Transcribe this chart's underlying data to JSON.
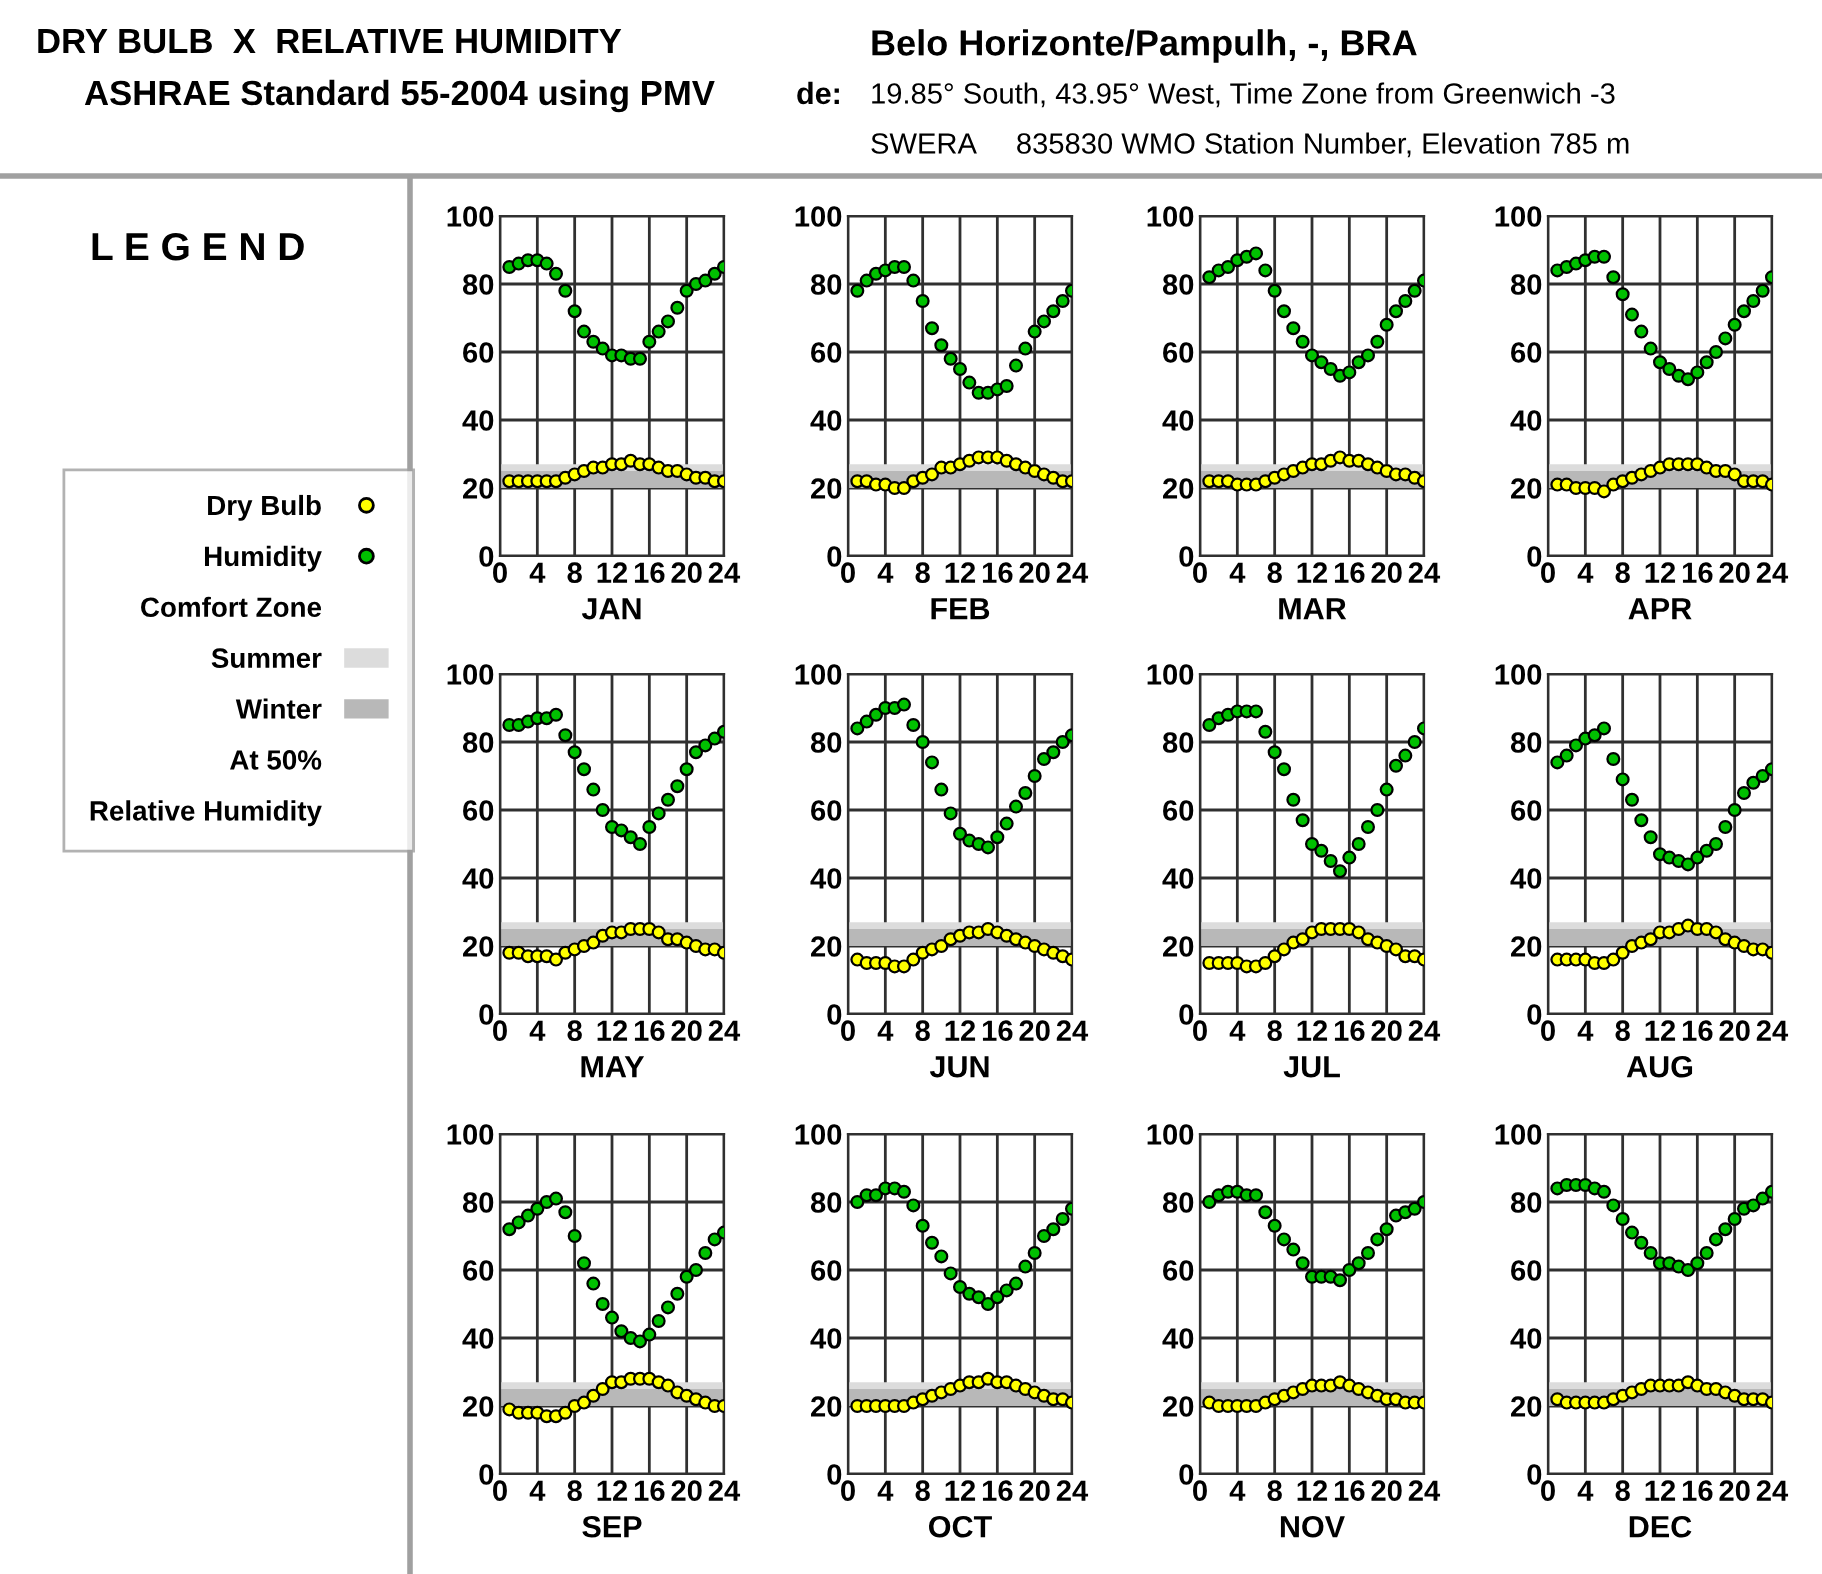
{
  "chart_data": [
    {
      "type": "other",
      "title": "DRY BULB  X  RELATIVE HUMIDITY",
      "subtitle": "ASHRAE Standard 55-2004 using PMV",
      "annotations": [
        "de:",
        "Belo Horizonte/Pampulh, -, BRA",
        "19.85° South, 43.95° West, Time Zone from Greenwich -3",
        "SWERA     835830 WMO Station Number, Elevation 785 m",
        "L E G E N D",
        "Comfort Zone",
        "At 50%",
        "Relative Humidity"
      ]
    },
    {
      "type": "scatter",
      "xlabel": "JAN",
      "xlim": [
        0,
        24
      ],
      "xticks": [
        0,
        4,
        8,
        12,
        16,
        20,
        24
      ],
      "ylim": [
        0,
        100
      ],
      "yticks": [
        0,
        20,
        40,
        60,
        80,
        100
      ],
      "grid": true,
      "marker": "circle",
      "legend": "left",
      "bands": [
        {
          "axis": "y",
          "from": 20,
          "to": 27,
          "label": "Summer",
          "color": "#dcdcdc"
        },
        {
          "axis": "y",
          "from": 20,
          "to": 25,
          "label": "Winter",
          "color": "#b8b8b8"
        }
      ],
      "series": [
        {
          "name": "Dry Bulb",
          "color": "#ffff00",
          "x": [
            1,
            2,
            3,
            4,
            5,
            6,
            7,
            8,
            9,
            10,
            11,
            12,
            13,
            14,
            15,
            16,
            17,
            18,
            19,
            20,
            21,
            22,
            23,
            24
          ],
          "values": [
            22,
            22,
            22,
            22,
            22,
            22,
            23,
            24,
            25,
            26,
            26,
            27,
            27,
            28,
            27,
            27,
            26,
            25,
            25,
            24,
            23,
            23,
            22,
            22
          ]
        },
        {
          "name": "Humidity",
          "color": "#00c000",
          "x": [
            1,
            2,
            3,
            4,
            5,
            6,
            7,
            8,
            9,
            10,
            11,
            12,
            13,
            14,
            15,
            16,
            17,
            18,
            19,
            20,
            21,
            22,
            23,
            24
          ],
          "values": [
            85,
            86,
            87,
            87,
            86,
            83,
            78,
            72,
            66,
            63,
            61,
            59,
            59,
            58,
            58,
            63,
            66,
            69,
            73,
            78,
            80,
            81,
            83,
            85
          ]
        }
      ]
    },
    {
      "type": "scatter",
      "xlabel": "FEB",
      "xlim": [
        0,
        24
      ],
      "xticks": [
        0,
        4,
        8,
        12,
        16,
        20,
        24
      ],
      "ylim": [
        0,
        100
      ],
      "yticks": [
        0,
        20,
        40,
        60,
        80,
        100
      ],
      "grid": true,
      "marker": "circle",
      "bands": [
        {
          "axis": "y",
          "from": 20,
          "to": 27,
          "color": "#dcdcdc"
        },
        {
          "axis": "y",
          "from": 20,
          "to": 25,
          "color": "#b8b8b8"
        }
      ],
      "series": [
        {
          "color": "#ffff00",
          "x": [
            1,
            2,
            3,
            4,
            5,
            6,
            7,
            8,
            9,
            10,
            11,
            12,
            13,
            14,
            15,
            16,
            17,
            18,
            19,
            20,
            21,
            22,
            23,
            24
          ],
          "values": [
            22,
            22,
            21,
            21,
            20,
            20,
            22,
            23,
            24,
            26,
            26,
            27,
            28,
            29,
            29,
            29,
            28,
            27,
            26,
            25,
            24,
            23,
            22,
            22
          ]
        },
        {
          "color": "#00c000",
          "x": [
            1,
            2,
            3,
            4,
            5,
            6,
            7,
            8,
            9,
            10,
            11,
            12,
            13,
            14,
            15,
            16,
            17,
            18,
            19,
            20,
            21,
            22,
            23,
            24
          ],
          "values": [
            78,
            81,
            83,
            84,
            85,
            85,
            81,
            75,
            67,
            62,
            58,
            55,
            51,
            48,
            48,
            49,
            50,
            56,
            61,
            66,
            69,
            72,
            75,
            78
          ]
        }
      ]
    },
    {
      "type": "scatter",
      "xlabel": "MAR",
      "xlim": [
        0,
        24
      ],
      "xticks": [
        0,
        4,
        8,
        12,
        16,
        20,
        24
      ],
      "ylim": [
        0,
        100
      ],
      "yticks": [
        0,
        20,
        40,
        60,
        80,
        100
      ],
      "grid": true,
      "marker": "circle",
      "bands": [
        {
          "axis": "y",
          "from": 20,
          "to": 27,
          "color": "#dcdcdc"
        },
        {
          "axis": "y",
          "from": 20,
          "to": 25,
          "color": "#b8b8b8"
        }
      ],
      "series": [
        {
          "color": "#ffff00",
          "x": [
            1,
            2,
            3,
            4,
            5,
            6,
            7,
            8,
            9,
            10,
            11,
            12,
            13,
            14,
            15,
            16,
            17,
            18,
            19,
            20,
            21,
            22,
            23,
            24
          ],
          "values": [
            22,
            22,
            22,
            21,
            21,
            21,
            22,
            23,
            24,
            25,
            26,
            27,
            27,
            28,
            29,
            28,
            28,
            27,
            26,
            25,
            24,
            24,
            23,
            22
          ]
        },
        {
          "color": "#00c000",
          "x": [
            1,
            2,
            3,
            4,
            5,
            6,
            7,
            8,
            9,
            10,
            11,
            12,
            13,
            14,
            15,
            16,
            17,
            18,
            19,
            20,
            21,
            22,
            23,
            24
          ],
          "values": [
            82,
            84,
            85,
            87,
            88,
            89,
            84,
            78,
            72,
            67,
            63,
            59,
            57,
            55,
            53,
            54,
            57,
            59,
            63,
            68,
            72,
            75,
            78,
            81
          ]
        }
      ]
    },
    {
      "type": "scatter",
      "xlabel": "APR",
      "xlim": [
        0,
        24
      ],
      "xticks": [
        0,
        4,
        8,
        12,
        16,
        20,
        24
      ],
      "ylim": [
        0,
        100
      ],
      "yticks": [
        0,
        20,
        40,
        60,
        80,
        100
      ],
      "grid": true,
      "marker": "circle",
      "bands": [
        {
          "axis": "y",
          "from": 20,
          "to": 27,
          "color": "#dcdcdc"
        },
        {
          "axis": "y",
          "from": 20,
          "to": 25,
          "color": "#b8b8b8"
        }
      ],
      "series": [
        {
          "color": "#ffff00",
          "x": [
            1,
            2,
            3,
            4,
            5,
            6,
            7,
            8,
            9,
            10,
            11,
            12,
            13,
            14,
            15,
            16,
            17,
            18,
            19,
            20,
            21,
            22,
            23,
            24
          ],
          "values": [
            21,
            21,
            20,
            20,
            20,
            19,
            21,
            22,
            23,
            24,
            25,
            26,
            27,
            27,
            27,
            27,
            26,
            25,
            25,
            24,
            22,
            22,
            22,
            21
          ]
        },
        {
          "color": "#00c000",
          "x": [
            1,
            2,
            3,
            4,
            5,
            6,
            7,
            8,
            9,
            10,
            11,
            12,
            13,
            14,
            15,
            16,
            17,
            18,
            19,
            20,
            21,
            22,
            23,
            24
          ],
          "values": [
            84,
            85,
            86,
            87,
            88,
            88,
            82,
            77,
            71,
            66,
            61,
            57,
            55,
            53,
            52,
            54,
            57,
            60,
            64,
            68,
            72,
            75,
            78,
            82
          ]
        }
      ]
    },
    {
      "type": "scatter",
      "xlabel": "MAY",
      "xlim": [
        0,
        24
      ],
      "xticks": [
        0,
        4,
        8,
        12,
        16,
        20,
        24
      ],
      "ylim": [
        0,
        100
      ],
      "yticks": [
        0,
        20,
        40,
        60,
        80,
        100
      ],
      "grid": true,
      "marker": "circle",
      "bands": [
        {
          "axis": "y",
          "from": 20,
          "to": 27,
          "color": "#dcdcdc"
        },
        {
          "axis": "y",
          "from": 20,
          "to": 25,
          "color": "#b8b8b8"
        }
      ],
      "series": [
        {
          "color": "#ffff00",
          "x": [
            1,
            2,
            3,
            4,
            5,
            6,
            7,
            8,
            9,
            10,
            11,
            12,
            13,
            14,
            15,
            16,
            17,
            18,
            19,
            20,
            21,
            22,
            23,
            24
          ],
          "values": [
            18,
            18,
            17,
            17,
            17,
            16,
            18,
            19,
            20,
            21,
            23,
            24,
            24,
            25,
            25,
            25,
            24,
            22,
            22,
            21,
            20,
            19,
            19,
            18
          ]
        },
        {
          "color": "#00c000",
          "x": [
            1,
            2,
            3,
            4,
            5,
            6,
            7,
            8,
            9,
            10,
            11,
            12,
            13,
            14,
            15,
            16,
            17,
            18,
            19,
            20,
            21,
            22,
            23,
            24
          ],
          "values": [
            85,
            85,
            86,
            87,
            87,
            88,
            82,
            77,
            72,
            66,
            60,
            55,
            54,
            52,
            50,
            55,
            59,
            63,
            67,
            72,
            77,
            79,
            81,
            83
          ]
        }
      ]
    },
    {
      "type": "scatter",
      "xlabel": "JUN",
      "xlim": [
        0,
        24
      ],
      "xticks": [
        0,
        4,
        8,
        12,
        16,
        20,
        24
      ],
      "ylim": [
        0,
        100
      ],
      "yticks": [
        0,
        20,
        40,
        60,
        80,
        100
      ],
      "grid": true,
      "marker": "circle",
      "bands": [
        {
          "axis": "y",
          "from": 20,
          "to": 27,
          "color": "#dcdcdc"
        },
        {
          "axis": "y",
          "from": 20,
          "to": 25,
          "color": "#b8b8b8"
        }
      ],
      "series": [
        {
          "color": "#ffff00",
          "x": [
            1,
            2,
            3,
            4,
            5,
            6,
            7,
            8,
            9,
            10,
            11,
            12,
            13,
            14,
            15,
            16,
            17,
            18,
            19,
            20,
            21,
            22,
            23,
            24
          ],
          "values": [
            16,
            15,
            15,
            15,
            14,
            14,
            16,
            18,
            19,
            20,
            22,
            23,
            24,
            24,
            25,
            24,
            23,
            22,
            21,
            20,
            19,
            18,
            17,
            16
          ]
        },
        {
          "color": "#00c000",
          "x": [
            1,
            2,
            3,
            4,
            5,
            6,
            7,
            8,
            9,
            10,
            11,
            12,
            13,
            14,
            15,
            16,
            17,
            18,
            19,
            20,
            21,
            22,
            23,
            24
          ],
          "values": [
            84,
            86,
            88,
            90,
            90,
            91,
            85,
            80,
            74,
            66,
            59,
            53,
            51,
            50,
            49,
            52,
            56,
            61,
            65,
            70,
            75,
            77,
            80,
            82
          ]
        }
      ]
    },
    {
      "type": "scatter",
      "xlabel": "JUL",
      "xlim": [
        0,
        24
      ],
      "xticks": [
        0,
        4,
        8,
        12,
        16,
        20,
        24
      ],
      "ylim": [
        0,
        100
      ],
      "yticks": [
        0,
        20,
        40,
        60,
        80,
        100
      ],
      "grid": true,
      "marker": "circle",
      "bands": [
        {
          "axis": "y",
          "from": 20,
          "to": 27,
          "color": "#dcdcdc"
        },
        {
          "axis": "y",
          "from": 20,
          "to": 25,
          "color": "#b8b8b8"
        }
      ],
      "series": [
        {
          "color": "#ffff00",
          "x": [
            1,
            2,
            3,
            4,
            5,
            6,
            7,
            8,
            9,
            10,
            11,
            12,
            13,
            14,
            15,
            16,
            17,
            18,
            19,
            20,
            21,
            22,
            23,
            24
          ],
          "values": [
            15,
            15,
            15,
            15,
            14,
            14,
            15,
            17,
            19,
            21,
            22,
            24,
            25,
            25,
            25,
            25,
            24,
            22,
            21,
            20,
            19,
            17,
            17,
            16
          ]
        },
        {
          "color": "#00c000",
          "x": [
            1,
            2,
            3,
            4,
            5,
            6,
            7,
            8,
            9,
            10,
            11,
            12,
            13,
            14,
            15,
            16,
            17,
            18,
            19,
            20,
            21,
            22,
            23,
            24
          ],
          "values": [
            85,
            87,
            88,
            89,
            89,
            89,
            83,
            77,
            72,
            63,
            57,
            50,
            48,
            45,
            42,
            46,
            50,
            55,
            60,
            66,
            73,
            76,
            80,
            84
          ]
        }
      ]
    },
    {
      "type": "scatter",
      "xlabel": "AUG",
      "xlim": [
        0,
        24
      ],
      "xticks": [
        0,
        4,
        8,
        12,
        16,
        20,
        24
      ],
      "ylim": [
        0,
        100
      ],
      "yticks": [
        0,
        20,
        40,
        60,
        80,
        100
      ],
      "grid": true,
      "marker": "circle",
      "bands": [
        {
          "axis": "y",
          "from": 20,
          "to": 27,
          "color": "#dcdcdc"
        },
        {
          "axis": "y",
          "from": 20,
          "to": 25,
          "color": "#b8b8b8"
        }
      ],
      "series": [
        {
          "color": "#ffff00",
          "x": [
            1,
            2,
            3,
            4,
            5,
            6,
            7,
            8,
            9,
            10,
            11,
            12,
            13,
            14,
            15,
            16,
            17,
            18,
            19,
            20,
            21,
            22,
            23,
            24
          ],
          "values": [
            16,
            16,
            16,
            16,
            15,
            15,
            16,
            18,
            20,
            21,
            22,
            24,
            24,
            25,
            26,
            25,
            25,
            24,
            22,
            21,
            20,
            19,
            19,
            18
          ]
        },
        {
          "color": "#00c000",
          "x": [
            1,
            2,
            3,
            4,
            5,
            6,
            7,
            8,
            9,
            10,
            11,
            12,
            13,
            14,
            15,
            16,
            17,
            18,
            19,
            20,
            21,
            22,
            23,
            24
          ],
          "values": [
            74,
            76,
            79,
            81,
            82,
            84,
            75,
            69,
            63,
            57,
            52,
            47,
            46,
            45,
            44,
            46,
            48,
            50,
            55,
            60,
            65,
            68,
            70,
            72
          ]
        }
      ]
    },
    {
      "type": "scatter",
      "xlabel": "SEP",
      "xlim": [
        0,
        24
      ],
      "xticks": [
        0,
        4,
        8,
        12,
        16,
        20,
        24
      ],
      "ylim": [
        0,
        100
      ],
      "yticks": [
        0,
        20,
        40,
        60,
        80,
        100
      ],
      "grid": true,
      "marker": "circle",
      "bands": [
        {
          "axis": "y",
          "from": 20,
          "to": 27,
          "color": "#dcdcdc"
        },
        {
          "axis": "y",
          "from": 20,
          "to": 25,
          "color": "#b8b8b8"
        }
      ],
      "series": [
        {
          "color": "#ffff00",
          "x": [
            1,
            2,
            3,
            4,
            5,
            6,
            7,
            8,
            9,
            10,
            11,
            12,
            13,
            14,
            15,
            16,
            17,
            18,
            19,
            20,
            21,
            22,
            23,
            24
          ],
          "values": [
            19,
            18,
            18,
            18,
            17,
            17,
            18,
            20,
            21,
            23,
            25,
            27,
            27,
            28,
            28,
            28,
            27,
            26,
            24,
            23,
            22,
            21,
            20,
            20
          ]
        },
        {
          "color": "#00c000",
          "x": [
            1,
            2,
            3,
            4,
            5,
            6,
            7,
            8,
            9,
            10,
            11,
            12,
            13,
            14,
            15,
            16,
            17,
            18,
            19,
            20,
            21,
            22,
            23,
            24
          ],
          "values": [
            72,
            74,
            76,
            78,
            80,
            81,
            77,
            70,
            62,
            56,
            50,
            46,
            42,
            40,
            39,
            41,
            45,
            49,
            53,
            58,
            60,
            65,
            69,
            71
          ]
        }
      ]
    },
    {
      "type": "scatter",
      "xlabel": "OCT",
      "xlim": [
        0,
        24
      ],
      "xticks": [
        0,
        4,
        8,
        12,
        16,
        20,
        24
      ],
      "ylim": [
        0,
        100
      ],
      "yticks": [
        0,
        20,
        40,
        60,
        80,
        100
      ],
      "grid": true,
      "marker": "circle",
      "bands": [
        {
          "axis": "y",
          "from": 20,
          "to": 27,
          "color": "#dcdcdc"
        },
        {
          "axis": "y",
          "from": 20,
          "to": 25,
          "color": "#b8b8b8"
        }
      ],
      "series": [
        {
          "color": "#ffff00",
          "x": [
            1,
            2,
            3,
            4,
            5,
            6,
            7,
            8,
            9,
            10,
            11,
            12,
            13,
            14,
            15,
            16,
            17,
            18,
            19,
            20,
            21,
            22,
            23,
            24
          ],
          "values": [
            20,
            20,
            20,
            20,
            20,
            20,
            21,
            22,
            23,
            24,
            25,
            26,
            27,
            27,
            28,
            27,
            27,
            26,
            25,
            24,
            23,
            22,
            22,
            21
          ]
        },
        {
          "color": "#00c000",
          "x": [
            1,
            2,
            3,
            4,
            5,
            6,
            7,
            8,
            9,
            10,
            11,
            12,
            13,
            14,
            15,
            16,
            17,
            18,
            19,
            20,
            21,
            22,
            23,
            24
          ],
          "values": [
            80,
            82,
            82,
            84,
            84,
            83,
            79,
            73,
            68,
            64,
            59,
            55,
            53,
            52,
            50,
            52,
            54,
            56,
            61,
            65,
            70,
            72,
            75,
            78
          ]
        }
      ]
    },
    {
      "type": "scatter",
      "xlabel": "NOV",
      "xlim": [
        0,
        24
      ],
      "xticks": [
        0,
        4,
        8,
        12,
        16,
        20,
        24
      ],
      "ylim": [
        0,
        100
      ],
      "yticks": [
        0,
        20,
        40,
        60,
        80,
        100
      ],
      "grid": true,
      "marker": "circle",
      "bands": [
        {
          "axis": "y",
          "from": 20,
          "to": 27,
          "color": "#dcdcdc"
        },
        {
          "axis": "y",
          "from": 20,
          "to": 25,
          "color": "#b8b8b8"
        }
      ],
      "series": [
        {
          "color": "#ffff00",
          "x": [
            1,
            2,
            3,
            4,
            5,
            6,
            7,
            8,
            9,
            10,
            11,
            12,
            13,
            14,
            15,
            16,
            17,
            18,
            19,
            20,
            21,
            22,
            23,
            24
          ],
          "values": [
            21,
            20,
            20,
            20,
            20,
            20,
            21,
            22,
            23,
            24,
            25,
            26,
            26,
            26,
            27,
            26,
            25,
            24,
            23,
            22,
            22,
            21,
            21,
            21
          ]
        },
        {
          "color": "#00c000",
          "x": [
            1,
            2,
            3,
            4,
            5,
            6,
            7,
            8,
            9,
            10,
            11,
            12,
            13,
            14,
            15,
            16,
            17,
            18,
            19,
            20,
            21,
            22,
            23,
            24
          ],
          "values": [
            80,
            82,
            83,
            83,
            82,
            82,
            77,
            73,
            69,
            66,
            62,
            58,
            58,
            58,
            57,
            60,
            62,
            65,
            69,
            72,
            76,
            77,
            78,
            80
          ]
        }
      ]
    },
    {
      "type": "scatter",
      "xlabel": "DEC",
      "xlim": [
        0,
        24
      ],
      "xticks": [
        0,
        4,
        8,
        12,
        16,
        20,
        24
      ],
      "ylim": [
        0,
        100
      ],
      "yticks": [
        0,
        20,
        40,
        60,
        80,
        100
      ],
      "grid": true,
      "marker": "circle",
      "bands": [
        {
          "axis": "y",
          "from": 20,
          "to": 27,
          "color": "#dcdcdc"
        },
        {
          "axis": "y",
          "from": 20,
          "to": 25,
          "color": "#b8b8b8"
        }
      ],
      "series": [
        {
          "color": "#ffff00",
          "x": [
            1,
            2,
            3,
            4,
            5,
            6,
            7,
            8,
            9,
            10,
            11,
            12,
            13,
            14,
            15,
            16,
            17,
            18,
            19,
            20,
            21,
            22,
            23,
            24
          ],
          "values": [
            22,
            21,
            21,
            21,
            21,
            21,
            22,
            23,
            24,
            25,
            26,
            26,
            26,
            26,
            27,
            26,
            25,
            25,
            24,
            23,
            22,
            22,
            22,
            21
          ]
        },
        {
          "color": "#00c000",
          "x": [
            1,
            2,
            3,
            4,
            5,
            6,
            7,
            8,
            9,
            10,
            11,
            12,
            13,
            14,
            15,
            16,
            17,
            18,
            19,
            20,
            21,
            22,
            23,
            24
          ],
          "values": [
            84,
            85,
            85,
            85,
            84,
            83,
            79,
            75,
            71,
            68,
            65,
            62,
            62,
            61,
            60,
            62,
            65,
            69,
            72,
            75,
            78,
            79,
            81,
            83
          ]
        }
      ]
    }
  ]
}
